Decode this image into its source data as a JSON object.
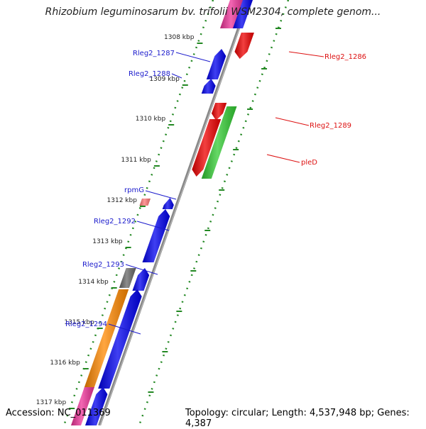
{
  "title": "Rhizobium leguminosarum bv. trifolii WSM2304, complete genom...",
  "accession": "Accession: NC_011369",
  "topology": "Topology: circular; Length: 4,537,948 bp; Genes: 4,387",
  "colors": {
    "forward": "#0000ee",
    "reverse": "#ee0000",
    "green": "#33cc33",
    "orange": "#ff8800",
    "magenta": "#ee3399",
    "gray": "#666666",
    "label_forward": "#1a1acc",
    "label_reverse": "#dd1111",
    "tick": "#228822"
  },
  "ticks": [
    {
      "label": "1308 kbp"
    },
    {
      "label": "1309 kbp"
    },
    {
      "label": "1310 kbp"
    },
    {
      "label": "1311 kbp"
    },
    {
      "label": "1312 kbp"
    },
    {
      "label": "1313 kbp"
    },
    {
      "label": "1314 kbp"
    },
    {
      "label": "1315 kbp"
    },
    {
      "label": "1316 kbp"
    },
    {
      "label": "1317 kbp"
    }
  ],
  "gene_labels": [
    {
      "label": "Rleg2_1286",
      "strand": "reverse"
    },
    {
      "label": "Rleg2_1287",
      "strand": "forward"
    },
    {
      "label": "Rleg2_1288",
      "strand": "forward"
    },
    {
      "label": "Rleg2_1289",
      "strand": "reverse"
    },
    {
      "label": "pleD",
      "strand": "reverse"
    },
    {
      "label": "rpmG",
      "strand": "forward"
    },
    {
      "label": "Rleg2_1292",
      "strand": "forward"
    },
    {
      "label": "Rleg2_1293",
      "strand": "forward"
    },
    {
      "label": "Rleg2_1294",
      "strand": "forward"
    }
  ]
}
